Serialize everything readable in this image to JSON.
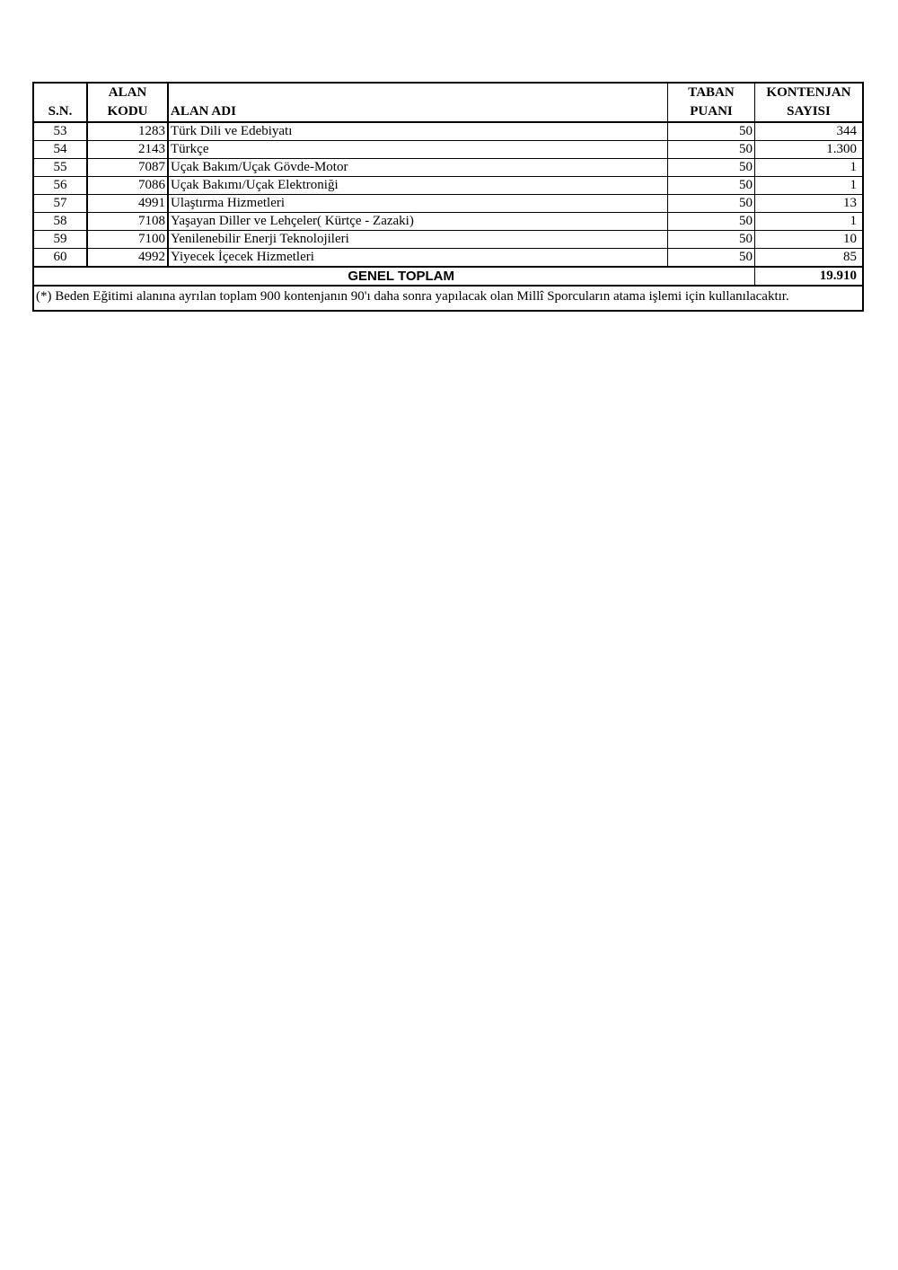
{
  "table": {
    "headers": {
      "sn": "S.N.",
      "code_line1": "ALAN",
      "code_line2": "KODU",
      "name": "ALAN ADI",
      "taban_line1": "TABAN",
      "taban_line2": "PUANI",
      "kont_line1": "KONTENJAN",
      "kont_line2": "SAYISI"
    },
    "rows": [
      {
        "sn": "53",
        "code": "1283",
        "name": "Türk Dili ve Edebiyatı",
        "taban": "50",
        "kontenjan": "344"
      },
      {
        "sn": "54",
        "code": "2143",
        "name": "Türkçe",
        "taban": "50",
        "kontenjan": "1.300"
      },
      {
        "sn": "55",
        "code": "7087",
        "name": "Uçak Bakım/Uçak Gövde-Motor",
        "taban": "50",
        "kontenjan": "1"
      },
      {
        "sn": "56",
        "code": "7086",
        "name": "Uçak Bakımı/Uçak Elektroniği",
        "taban": "50",
        "kontenjan": "1"
      },
      {
        "sn": "57",
        "code": "4991",
        "name": "Ulaştırma Hizmetleri",
        "taban": "50",
        "kontenjan": "13"
      },
      {
        "sn": "58",
        "code": "7108",
        "name": "Yaşayan Diller ve Lehçeler( Kürtçe - Zazaki)",
        "taban": "50",
        "kontenjan": "1"
      },
      {
        "sn": "59",
        "code": "7100",
        "name": "Yenilenebilir Enerji Teknolojileri",
        "taban": "50",
        "kontenjan": "10"
      },
      {
        "sn": "60",
        "code": "4992",
        "name": "Yiyecek İçecek  Hizmetleri",
        "taban": "50",
        "kontenjan": "85"
      }
    ],
    "total_label": "GENEL TOPLAM",
    "total_value": "19.910",
    "note": "(*) Beden Eğitimi alanına ayrılan toplam 900 kontenjanın 90'ı daha sonra yapılacak olan Millî Sporcuların atama işlemi için kullanılacaktır."
  }
}
